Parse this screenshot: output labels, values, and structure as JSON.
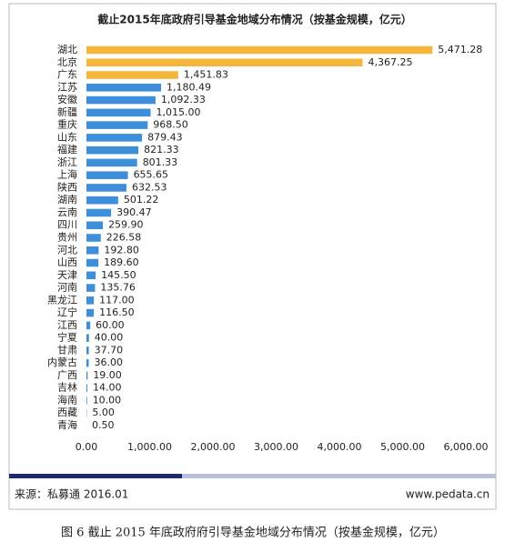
{
  "chart_data": {
    "type": "bar",
    "orientation": "horizontal",
    "title": "截止2015年底政府引导基金地域分布情况（按基金规模，亿元）",
    "categories": [
      "湖北",
      "北京",
      "广东",
      "江苏",
      "安徽",
      "新疆",
      "重庆",
      "山东",
      "福建",
      "浙江",
      "上海",
      "陕西",
      "湖南",
      "云南",
      "四川",
      "贵州",
      "河北",
      "山西",
      "天津",
      "河南",
      "黑龙江",
      "辽宁",
      "江西",
      "宁夏",
      "甘肃",
      "内蒙古",
      "广西",
      "吉林",
      "海南",
      "西藏",
      "青海"
    ],
    "values": [
      5471.28,
      4367.25,
      1451.83,
      1180.49,
      1092.33,
      1015.0,
      968.5,
      879.43,
      821.33,
      801.33,
      655.65,
      632.53,
      501.22,
      390.47,
      259.9,
      226.58,
      192.8,
      189.6,
      145.5,
      135.76,
      117.0,
      116.5,
      60.0,
      40.0,
      37.7,
      36.0,
      19.0,
      14.0,
      10.0,
      5.0,
      0.5
    ],
    "value_labels": [
      "5,471.28",
      "4,367.25",
      "1,451.83",
      "1,180.49",
      "1,092.33",
      "1,015.00",
      "968.50",
      "879.43",
      "821.33",
      "801.33",
      "655.65",
      "632.53",
      "501.22",
      "390.47",
      "259.90",
      "226.58",
      "192.80",
      "189.60",
      "145.50",
      "135.76",
      "117.00",
      "116.50",
      "60.00",
      "40.00",
      "37.70",
      "36.00",
      "19.00",
      "14.00",
      "10.00",
      "5.00",
      "0.50"
    ],
    "colors": [
      "#f5b73b",
      "#f5b73b",
      "#f5b73b",
      "#3d8fd9",
      "#3d8fd9",
      "#3d8fd9",
      "#3d8fd9",
      "#3d8fd9",
      "#3d8fd9",
      "#3d8fd9",
      "#3d8fd9",
      "#3d8fd9",
      "#3d8fd9",
      "#3d8fd9",
      "#3d8fd9",
      "#3d8fd9",
      "#3d8fd9",
      "#3d8fd9",
      "#3d8fd9",
      "#3d8fd9",
      "#3d8fd9",
      "#3d8fd9",
      "#3d8fd9",
      "#3d8fd9",
      "#3d8fd9",
      "#3d8fd9",
      "#3d8fd9",
      "#3d8fd9",
      "#3d8fd9",
      "#3d8fd9",
      "#3d8fd9"
    ],
    "xlim": [
      0,
      6000
    ],
    "xticks": [
      {
        "value": 0,
        "label": "0.00"
      },
      {
        "value": 1000,
        "label": "1,000.00"
      },
      {
        "value": 2000,
        "label": "2,000.00"
      },
      {
        "value": 3000,
        "label": "3,000.00"
      },
      {
        "value": 4000,
        "label": "4,000.00"
      },
      {
        "value": 5000,
        "label": "5,000.00"
      },
      {
        "value": 6000,
        "label": "6,000.00"
      }
    ],
    "grid": false
  },
  "source": "来源：私募通 2016.01",
  "website": "www.pedata.cn",
  "caption": "图 6 截止 2015 年底政府府引导基金地域分布情况（按基金规模，亿元）"
}
